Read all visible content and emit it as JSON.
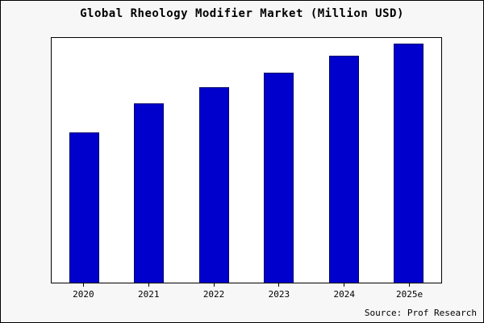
{
  "title": "Global Rheology Modifier Market (Million USD)",
  "source": "Source: Prof Research",
  "colors": {
    "bar_fill": "#0000cd",
    "bar_border": "#000066",
    "plot_background": "#ffffff",
    "frame_background": "#f7f7f7",
    "axis": "#000000"
  },
  "chart_data": {
    "type": "bar",
    "title": "Global Rheology Modifier Market (Million USD)",
    "categories": [
      "2020",
      "2021",
      "2022",
      "2023",
      "2024",
      "2025e"
    ],
    "values": [
      63,
      75,
      82,
      88,
      95,
      100
    ],
    "xlabel": "",
    "ylabel": "",
    "ylim": [
      0,
      102.5
    ],
    "grid": false,
    "legend": false,
    "source": "Source: Prof Research"
  }
}
